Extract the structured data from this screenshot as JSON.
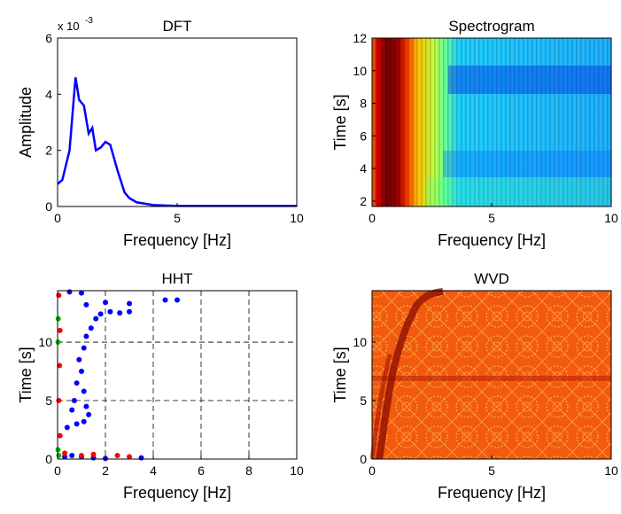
{
  "chart_data": [
    {
      "type": "line",
      "title": "DFT",
      "xlabel": "Frequency [Hz]",
      "ylabel": "Amplitude",
      "y_scale_label": {
        "base": "x 10",
        "exponent": "-3"
      },
      "x": [
        0,
        0.2,
        0.5,
        0.75,
        0.9,
        1.1,
        1.3,
        1.45,
        1.6,
        1.8,
        2.0,
        2.2,
        2.5,
        2.8,
        3.0,
        3.3,
        4.0,
        5.0,
        10.0
      ],
      "series": [
        {
          "color": "#0000ff",
          "values": [
            0.8,
            0.95,
            2.0,
            4.6,
            3.8,
            3.6,
            2.6,
            2.8,
            2.0,
            2.1,
            2.3,
            2.2,
            1.3,
            0.5,
            0.3,
            0.15,
            0.05,
            0.02,
            0.02
          ]
        }
      ],
      "xlim": [
        0,
        10
      ],
      "xticks": [
        0,
        5,
        10
      ],
      "ylim": [
        0,
        6
      ],
      "yticks": [
        0,
        2,
        4,
        6
      ],
      "grid": false
    },
    {
      "type": "heatmap",
      "title": "Spectrogram",
      "xlabel": "Frequency [Hz]",
      "ylabel": "Time [s]",
      "xlim": [
        0,
        10
      ],
      "xticks": [
        0,
        5,
        10
      ],
      "ylim": [
        1.67,
        12
      ],
      "yticks": [
        2,
        4,
        6,
        8,
        10,
        12
      ],
      "grid": false
    },
    {
      "type": "scatter",
      "title": "HHT",
      "xlabel": "Frequency [Hz]",
      "ylabel": "Time [s]",
      "series": [
        {
          "color": "#0000ff",
          "x": [
            0.3,
            0.6,
            1.0,
            1.5,
            2.0,
            3.5,
            0.4,
            0.8,
            1.1,
            1.3,
            0.6,
            1.2,
            0.7,
            1.1,
            0.8,
            1.0,
            0.9,
            1.1,
            1.2,
            1.4,
            1.6,
            1.8,
            2.2,
            2.6,
            3.0,
            1.2,
            2.0,
            3.0,
            4.5,
            5.0,
            1.0,
            0.5
          ],
          "values": [
            0.2,
            0.3,
            0.2,
            0.1,
            0.05,
            0.1,
            2.7,
            3.0,
            3.2,
            3.8,
            4.2,
            4.5,
            5.0,
            5.8,
            6.5,
            7.5,
            8.5,
            9.5,
            10.5,
            11.2,
            12.0,
            12.4,
            12.6,
            12.5,
            12.6,
            13.2,
            13.4,
            13.3,
            13.6,
            13.6,
            14.2,
            14.3
          ]
        },
        {
          "color": "#ff0000",
          "x": [
            0.05,
            0.1,
            0.08,
            0.05,
            0.1,
            0.3,
            1.0,
            1.5,
            2.5,
            3.0
          ],
          "values": [
            14.0,
            11.0,
            8.0,
            5.0,
            2.0,
            0.5,
            0.3,
            0.4,
            0.3,
            0.2
          ]
        },
        {
          "color": "#00c000",
          "x": [
            0.03,
            0.02,
            0.05,
            0.02
          ],
          "values": [
            12.0,
            10.0,
            0.3,
            0.8
          ]
        }
      ],
      "xlim": [
        0,
        10
      ],
      "xticks": [
        0,
        2,
        4,
        6,
        8,
        10
      ],
      "ylim": [
        0,
        14.4
      ],
      "yticks": [
        0,
        5,
        10
      ],
      "grid": true
    },
    {
      "type": "heatmap",
      "title": "WVD",
      "xlabel": "Frequency [Hz]",
      "ylabel": "Time [s]",
      "xlim": [
        0,
        10
      ],
      "xticks": [
        0,
        5,
        10
      ],
      "ylim": [
        0,
        14.4
      ],
      "yticks": [
        0,
        5,
        10
      ],
      "grid": false
    }
  ]
}
